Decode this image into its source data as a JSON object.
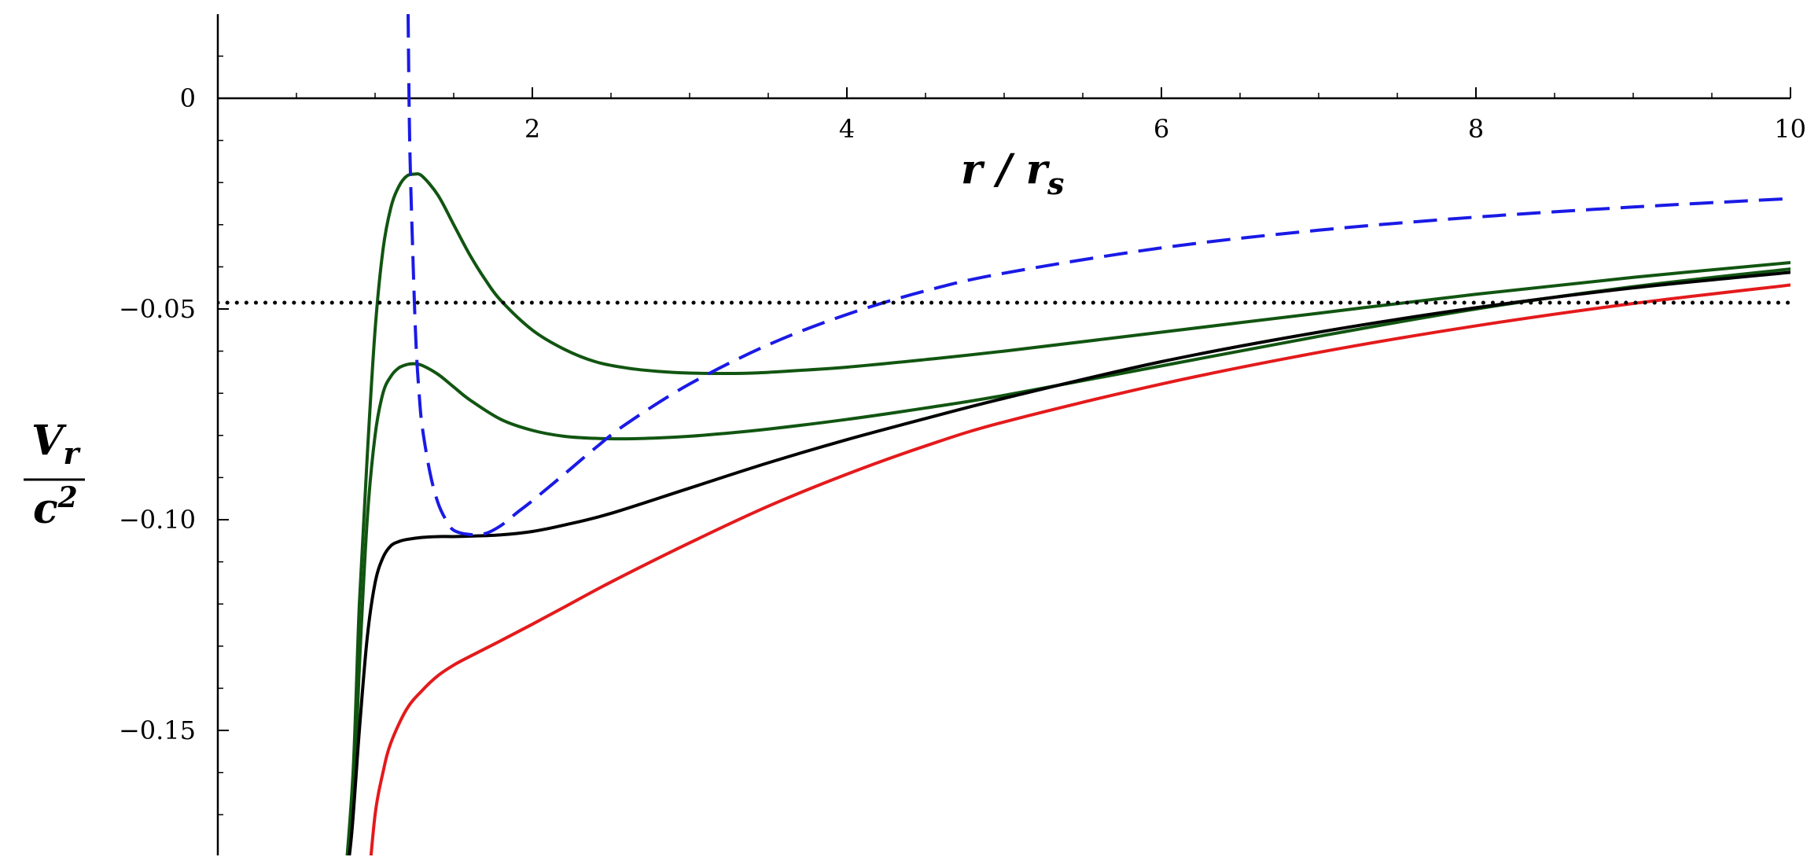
{
  "chart_data": {
    "type": "line",
    "title": "",
    "xlabel": {
      "main": "r / r",
      "sub": "s"
    },
    "ylabel": {
      "numerator_main": "V",
      "numerator_sub": "r",
      "denominator_main": "c",
      "denominator_sup": "2"
    },
    "xlim": [
      0,
      10
    ],
    "ylim": [
      -0.18,
      0.02
    ],
    "x_ticks": [
      2,
      4,
      6,
      8,
      10
    ],
    "x_tick_labels": [
      "2",
      "4",
      "6",
      "8",
      "10"
    ],
    "y_ticks": [
      0,
      -0.05,
      -0.1,
      -0.15
    ],
    "y_tick_labels": [
      "0",
      "−0.05",
      "−0.10",
      "−0.15"
    ],
    "x_minor_step": 0.5,
    "y_minor_step": 0.01,
    "grid": false,
    "legend": "none",
    "series": [
      {
        "color": "#115511",
        "style": "solid",
        "x": [
          0.8,
          0.86,
          0.9,
          0.95,
          1.0,
          1.05,
          1.1,
          1.15,
          1.2,
          1.25,
          1.3,
          1.4,
          1.5,
          1.6,
          1.7,
          1.8,
          2.0,
          2.2,
          2.4,
          2.6,
          2.8,
          3.0,
          3.2,
          3.4,
          3.6,
          4.0,
          4.5,
          5.0,
          6.0,
          7.0,
          8.0,
          9.0,
          10.0
        ],
        "y": [
          -0.19,
          -0.16,
          -0.12,
          -0.085,
          -0.055,
          -0.036,
          -0.026,
          -0.021,
          -0.0185,
          -0.018,
          -0.0185,
          -0.023,
          -0.03,
          -0.037,
          -0.043,
          -0.048,
          -0.055,
          -0.0595,
          -0.0625,
          -0.064,
          -0.0648,
          -0.0652,
          -0.0653,
          -0.0652,
          -0.0648,
          -0.0638,
          -0.062,
          -0.06,
          -0.0555,
          -0.051,
          -0.0465,
          -0.0425,
          -0.039
        ]
      },
      {
        "color": "#115511",
        "style": "solid",
        "x": [
          0.8,
          0.86,
          0.9,
          0.95,
          1.0,
          1.05,
          1.1,
          1.15,
          1.2,
          1.25,
          1.3,
          1.4,
          1.5,
          1.6,
          1.8,
          2.0,
          2.2,
          2.4,
          2.6,
          2.8,
          3.0,
          3.2,
          3.5,
          4.0,
          4.5,
          5.0,
          6.0,
          7.0,
          8.0,
          9.0,
          10.0
        ],
        "y": [
          -0.19,
          -0.17,
          -0.135,
          -0.1,
          -0.08,
          -0.07,
          -0.066,
          -0.064,
          -0.0632,
          -0.063,
          -0.0634,
          -0.0655,
          -0.0685,
          -0.0715,
          -0.0762,
          -0.0788,
          -0.0802,
          -0.0807,
          -0.0808,
          -0.0806,
          -0.0802,
          -0.0796,
          -0.0785,
          -0.0762,
          -0.0735,
          -0.0705,
          -0.0635,
          -0.0565,
          -0.05,
          -0.0447,
          -0.0405
        ]
      },
      {
        "color": "#000000",
        "style": "solid",
        "x": [
          0.8,
          0.85,
          0.9,
          0.95,
          1.0,
          1.05,
          1.1,
          1.15,
          1.2,
          1.3,
          1.4,
          1.5,
          1.6,
          1.8,
          2.0,
          2.2,
          2.5,
          3.0,
          3.5,
          4.0,
          4.5,
          5.0,
          6.0,
          7.0,
          8.0,
          9.0,
          10.0
        ],
        "y": [
          -0.19,
          -0.175,
          -0.15,
          -0.128,
          -0.115,
          -0.109,
          -0.1062,
          -0.1052,
          -0.1047,
          -0.1042,
          -0.104,
          -0.104,
          -0.1039,
          -0.1036,
          -0.1028,
          -0.1013,
          -0.0985,
          -0.0925,
          -0.0865,
          -0.081,
          -0.076,
          -0.0712,
          -0.0625,
          -0.0555,
          -0.0497,
          -0.045,
          -0.0413
        ]
      },
      {
        "color": "#e41a1c",
        "style": "solid",
        "x": [
          0.95,
          1.0,
          1.05,
          1.1,
          1.2,
          1.3,
          1.4,
          1.5,
          1.6,
          1.8,
          2.0,
          2.2,
          2.5,
          3.0,
          3.5,
          4.0,
          4.5,
          5.0,
          6.0,
          7.0,
          8.0,
          9.0,
          10.0
        ],
        "y": [
          -0.19,
          -0.17,
          -0.16,
          -0.153,
          -0.145,
          -0.1405,
          -0.137,
          -0.1345,
          -0.1325,
          -0.1287,
          -0.1248,
          -0.1208,
          -0.1148,
          -0.1055,
          -0.0968,
          -0.0892,
          -0.0825,
          -0.0768,
          -0.0678,
          -0.0603,
          -0.054,
          -0.0487,
          -0.0443
        ]
      },
      {
        "color": "#1a1ae6",
        "style": "dashed",
        "x": [
          1.21,
          1.22,
          1.24,
          1.26,
          1.28,
          1.3,
          1.35,
          1.4,
          1.45,
          1.5,
          1.6,
          1.7,
          1.8,
          1.9,
          2.0,
          2.2,
          2.4,
          2.6,
          3.0,
          3.5,
          4.0,
          4.5,
          5.0,
          6.0,
          7.0,
          8.0,
          9.0,
          10.0
        ],
        "y": [
          0.02,
          -0.01,
          -0.037,
          -0.058,
          -0.07,
          -0.078,
          -0.089,
          -0.096,
          -0.1,
          -0.1025,
          -0.1035,
          -0.1033,
          -0.1014,
          -0.0984,
          -0.0955,
          -0.0893,
          -0.083,
          -0.0772,
          -0.0678,
          -0.0585,
          -0.0513,
          -0.0457,
          -0.0415,
          -0.0355,
          -0.0313,
          -0.0282,
          -0.0258,
          -0.0238
        ]
      },
      {
        "color": "#000000",
        "style": "dotted",
        "x": [
          0,
          10
        ],
        "y": [
          -0.0485,
          -0.0485
        ]
      }
    ]
  }
}
